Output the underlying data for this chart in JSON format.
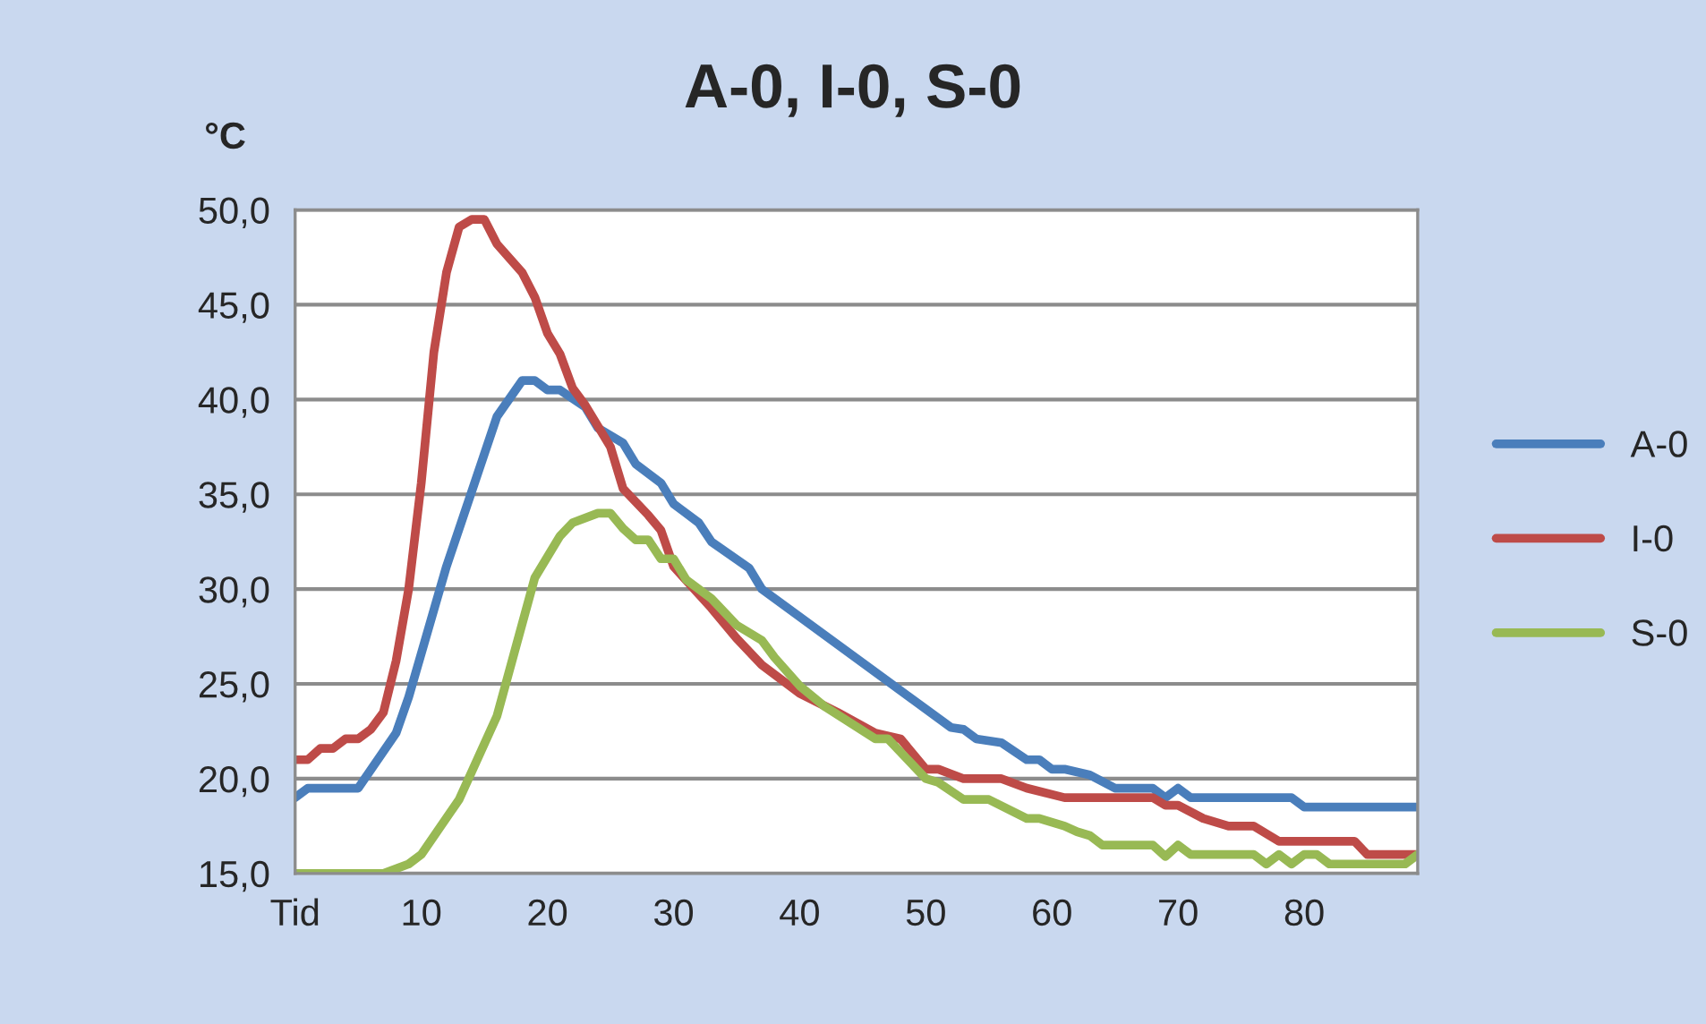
{
  "chart_data": {
    "type": "line",
    "title": "A-0, I-0, S-0",
    "ylabel": "°C",
    "xlim": [
      0,
      89
    ],
    "xticks": [
      {
        "value": 0,
        "label": "Tid"
      },
      10,
      20,
      30,
      40,
      50,
      60,
      70,
      80
    ],
    "ylim": [
      15,
      50
    ],
    "yticks": [
      {
        "value": 15,
        "label": "15,0"
      },
      {
        "value": 20,
        "label": "20,0"
      },
      {
        "value": 25,
        "label": "25,0"
      },
      {
        "value": 30,
        "label": "30,0"
      },
      {
        "value": 35,
        "label": "35,0"
      },
      {
        "value": 40,
        "label": "40,0"
      },
      {
        "value": 45,
        "label": "45,0"
      },
      {
        "value": 50,
        "label": "50,0"
      }
    ],
    "grid": "y",
    "legend": "right",
    "marker": "none",
    "line_style": "solid",
    "series": [
      {
        "name": "A-0",
        "color": "#4a7ebb",
        "x": [
          0,
          1,
          5,
          8,
          9,
          12,
          16,
          18,
          19,
          20,
          21,
          23,
          24,
          26,
          27,
          29,
          30,
          32,
          33,
          36,
          37,
          52,
          53,
          54,
          56,
          58,
          59,
          60,
          61,
          63,
          65,
          68,
          69,
          70,
          71,
          79,
          80,
          89
        ],
        "values": [
          19.0,
          19.5,
          19.5,
          22.4,
          24.3,
          31.2,
          39.1,
          41.0,
          41.0,
          40.5,
          40.5,
          39.6,
          38.5,
          37.7,
          36.6,
          35.6,
          34.5,
          33.5,
          32.5,
          31.1,
          30.0,
          22.7,
          22.6,
          22.1,
          21.9,
          21.0,
          21.0,
          20.5,
          20.5,
          20.2,
          19.5,
          19.5,
          19.0,
          19.5,
          19.0,
          19.0,
          18.5,
          18.5
        ]
      },
      {
        "name": "I-0",
        "color": "#be4b48",
        "x": [
          0,
          1,
          2,
          3,
          4,
          5,
          6,
          7,
          8,
          9,
          10,
          11,
          12,
          13,
          14,
          15,
          16,
          18,
          19,
          20,
          21,
          22,
          23,
          25,
          26,
          28,
          29,
          30,
          33,
          35,
          37,
          40,
          43,
          46,
          48,
          50,
          51,
          53,
          56,
          58,
          61,
          68,
          69,
          70,
          72,
          74,
          76,
          78,
          84,
          85,
          89
        ],
        "values": [
          21.0,
          21.0,
          21.6,
          21.6,
          22.1,
          22.1,
          22.6,
          23.5,
          26.2,
          30.0,
          35.6,
          42.5,
          46.7,
          49.1,
          49.5,
          49.5,
          48.2,
          46.7,
          45.4,
          43.5,
          42.4,
          40.6,
          39.7,
          37.5,
          35.3,
          33.9,
          33.1,
          31.2,
          29.0,
          27.4,
          26.0,
          24.5,
          23.5,
          22.4,
          22.1,
          20.5,
          20.5,
          20.0,
          20.0,
          19.5,
          19.0,
          19.0,
          18.6,
          18.6,
          17.9,
          17.5,
          17.5,
          16.7,
          16.7,
          16.0,
          16.0
        ]
      },
      {
        "name": "S-0",
        "color": "#98b954",
        "x": [
          0,
          7,
          9,
          10,
          13,
          16,
          19,
          21,
          22,
          24,
          25,
          26,
          27,
          28,
          29,
          30,
          31,
          33,
          35,
          37,
          38,
          40,
          42,
          46,
          47,
          50,
          51,
          53,
          55,
          58,
          59,
          61,
          62,
          63,
          64,
          68,
          69,
          70,
          71,
          76,
          77,
          78,
          79,
          80,
          81,
          82,
          88,
          89
        ],
        "values": [
          15,
          15,
          15.5,
          16.0,
          18.9,
          23.3,
          30.6,
          32.8,
          33.5,
          34.0,
          34.0,
          33.2,
          32.6,
          32.6,
          31.6,
          31.6,
          30.5,
          29.5,
          28.1,
          27.3,
          26.4,
          24.9,
          23.8,
          22.1,
          22.1,
          20.0,
          19.8,
          18.9,
          18.9,
          17.9,
          17.9,
          17.5,
          17.2,
          17.0,
          16.5,
          16.5,
          15.9,
          16.5,
          16.0,
          16.0,
          15.5,
          16.0,
          15.5,
          16.0,
          16.0,
          15.5,
          15.5,
          16.0
        ]
      }
    ]
  }
}
